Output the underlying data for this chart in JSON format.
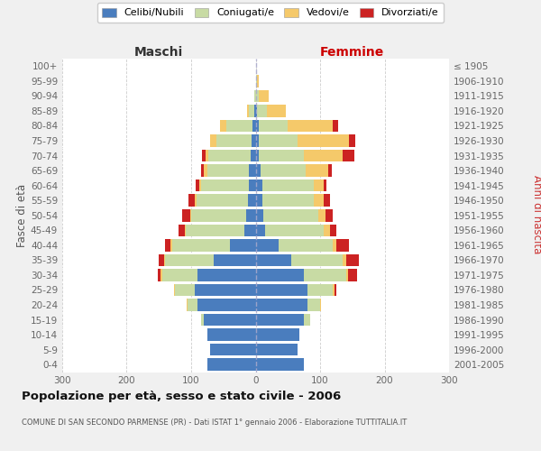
{
  "age_groups": [
    "0-4",
    "5-9",
    "10-14",
    "15-19",
    "20-24",
    "25-29",
    "30-34",
    "35-39",
    "40-44",
    "45-49",
    "50-54",
    "55-59",
    "60-64",
    "65-69",
    "70-74",
    "75-79",
    "80-84",
    "85-89",
    "90-94",
    "95-99",
    "100+"
  ],
  "birth_years": [
    "2001-2005",
    "1996-2000",
    "1991-1995",
    "1986-1990",
    "1981-1985",
    "1976-1980",
    "1971-1975",
    "1966-1970",
    "1961-1965",
    "1956-1960",
    "1951-1955",
    "1946-1950",
    "1941-1945",
    "1936-1940",
    "1931-1935",
    "1926-1930",
    "1921-1925",
    "1916-1920",
    "1911-1915",
    "1906-1910",
    "≤ 1905"
  ],
  "maschi_celibi": [
    75,
    70,
    75,
    80,
    90,
    95,
    90,
    65,
    40,
    18,
    15,
    12,
    10,
    10,
    8,
    6,
    5,
    2,
    0,
    0,
    0
  ],
  "maschi_coniugati": [
    0,
    0,
    0,
    5,
    15,
    30,
    55,
    75,
    90,
    90,
    85,
    80,
    75,
    65,
    65,
    55,
    40,
    8,
    2,
    0,
    0
  ],
  "maschi_vedovi": [
    0,
    0,
    0,
    0,
    2,
    2,
    2,
    2,
    2,
    2,
    2,
    2,
    3,
    5,
    5,
    10,
    10,
    3,
    0,
    0,
    0
  ],
  "maschi_divorziati": [
    0,
    0,
    0,
    0,
    0,
    0,
    5,
    8,
    8,
    10,
    12,
    10,
    5,
    5,
    5,
    0,
    0,
    0,
    0,
    0,
    0
  ],
  "femmine_nubili": [
    75,
    65,
    68,
    75,
    80,
    80,
    75,
    55,
    35,
    15,
    12,
    10,
    10,
    8,
    5,
    5,
    5,
    2,
    0,
    0,
    0
  ],
  "femmine_coniugate": [
    0,
    0,
    0,
    10,
    20,
    40,
    65,
    80,
    85,
    90,
    85,
    80,
    80,
    70,
    70,
    60,
    45,
    15,
    5,
    2,
    0
  ],
  "femmine_vedove": [
    0,
    0,
    0,
    0,
    2,
    3,
    3,
    5,
    5,
    10,
    12,
    15,
    15,
    35,
    60,
    80,
    70,
    30,
    15,
    3,
    0
  ],
  "femmine_divorziate": [
    0,
    0,
    0,
    0,
    0,
    2,
    15,
    20,
    20,
    10,
    10,
    10,
    5,
    5,
    18,
    10,
    8,
    0,
    0,
    0,
    0
  ],
  "colors": {
    "celibi": "#4a7dbe",
    "coniugati": "#c8dba4",
    "vedovi": "#f5c96a",
    "divorziati": "#cc2222"
  },
  "title": "Popolazione per età, sesso e stato civile - 2006",
  "subtitle": "COMUNE DI SAN SECONDO PARMENSE (PR) - Dati ISTAT 1° gennaio 2006 - Elaborazione TUTTITALIA.IT",
  "legend_labels": [
    "Celibi/Nubili",
    "Coniugati/e",
    "Vedovi/e",
    "Divorziati/e"
  ],
  "xlim": 300,
  "bg_color": "#f0f0f0",
  "plot_bg": "#ffffff",
  "ylabel_left": "Fasce di età",
  "ylabel_right": "Anni di nascita",
  "label_maschi": "Maschi",
  "label_femmine": "Femmine"
}
